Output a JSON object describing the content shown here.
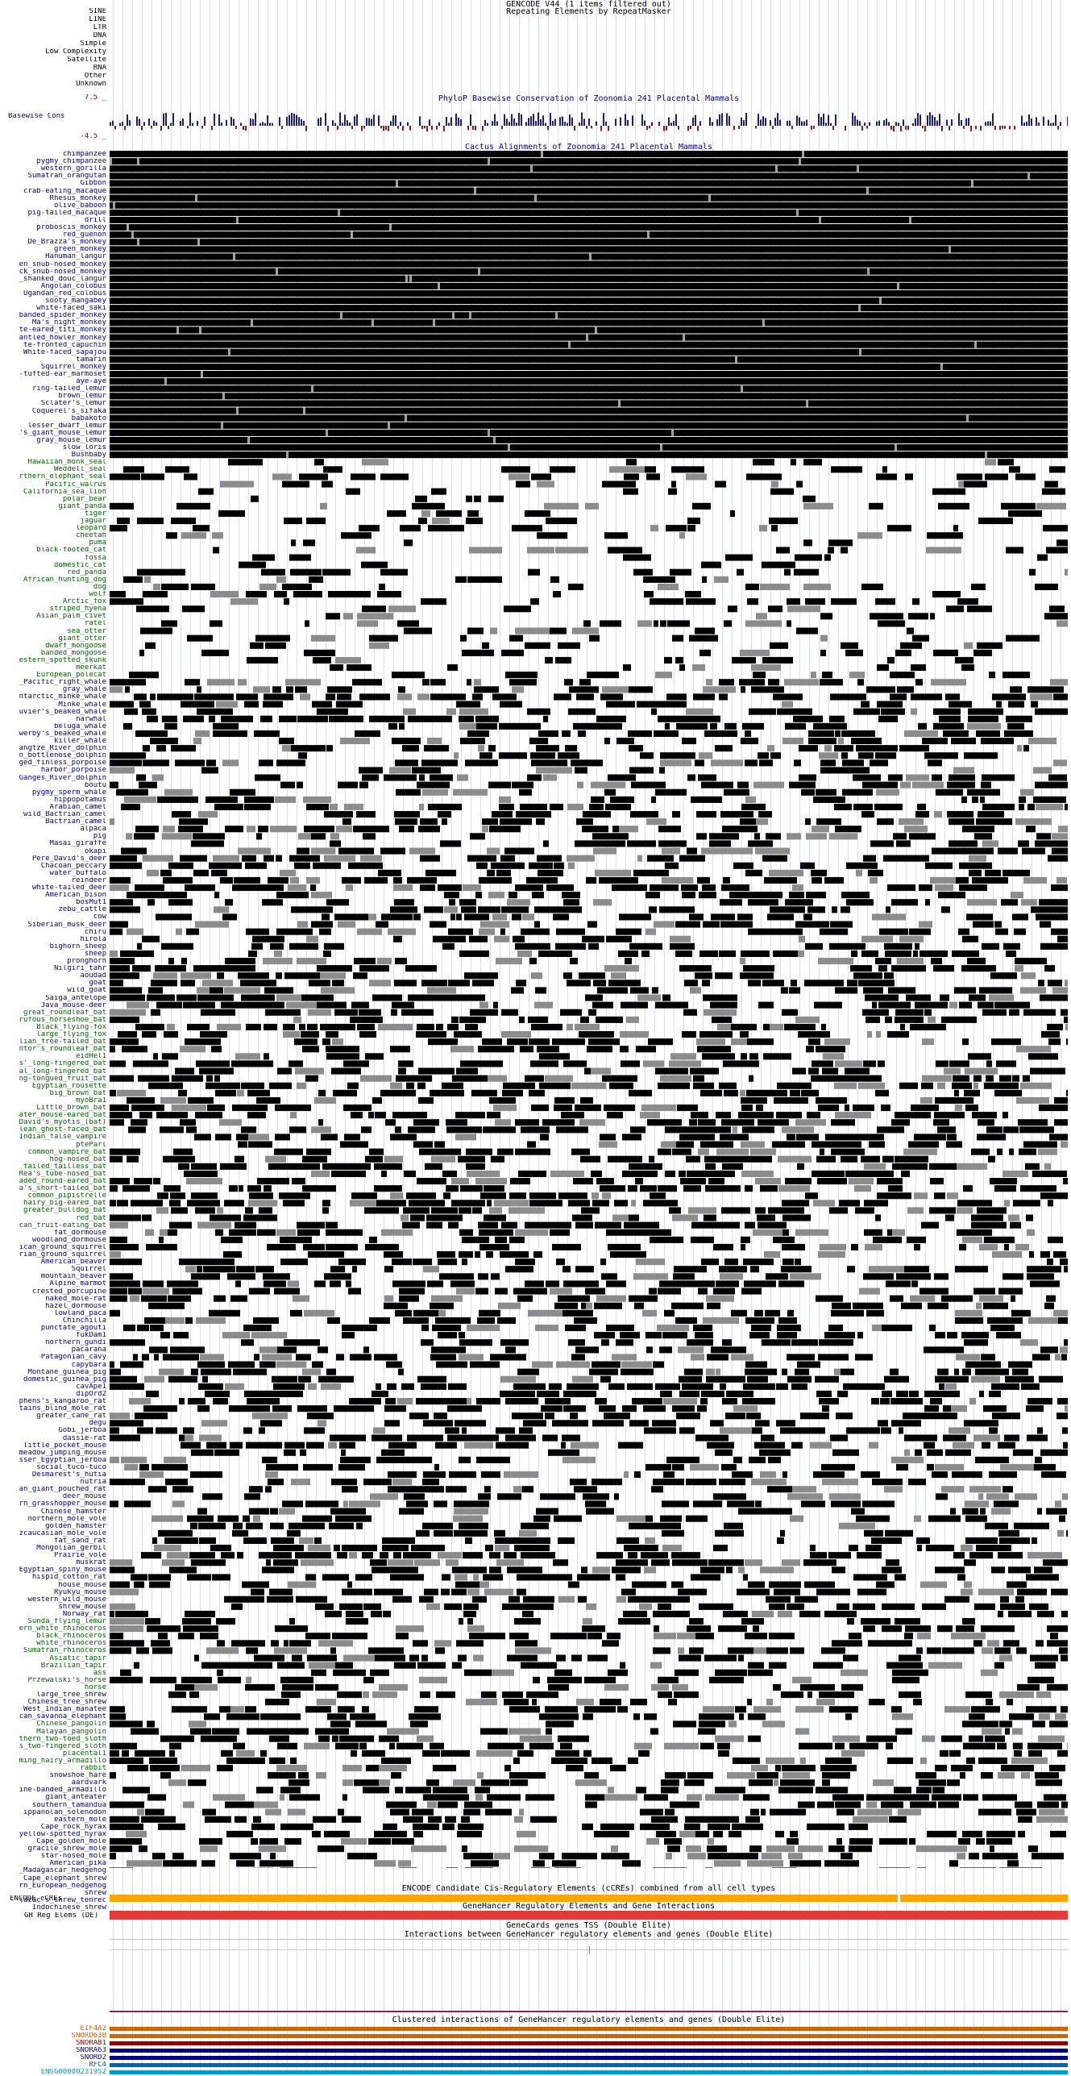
{
  "header": {
    "gencode": "GENCODE V44 (1 items filtered out)",
    "repeatmasker": "Repeating Elements by RepeatMasker"
  },
  "repeat_classes": [
    "SINE",
    "LINE",
    "LTR",
    "DNA",
    "Simple",
    "Low Complexity",
    "Satellite",
    "RNA",
    "Other",
    "Unknown"
  ],
  "conservation": {
    "title": "PhyloP Basewise Conservation of Zoonomia 241 Placental Mammals",
    "label": "Basewise Cons",
    "max_label": "7.5 _",
    "min_label": "-4.5 _",
    "pos_color": "#1a1a80",
    "neg_color": "#8b1a1a"
  },
  "cactus": {
    "title": "Cactus Alignments of Zoonomia 241 Placental Mammals",
    "species": [
      {
        "n": "chimpanzee",
        "c": "#000080"
      },
      {
        "n": "pygmy_chimpanzee",
        "c": "#000080"
      },
      {
        "n": "western_gorilla",
        "c": "#000080"
      },
      {
        "n": "Sumatran_orangutan",
        "c": "#000080"
      },
      {
        "n": "Gibbon",
        "c": "#000080"
      },
      {
        "n": "crab-eating_macaque",
        "c": "#000080"
      },
      {
        "n": "Rhesus_monkey",
        "c": "#000080"
      },
      {
        "n": "olive_baboon",
        "c": "#000080"
      },
      {
        "n": "pig-tailed_macaque",
        "c": "#000080"
      },
      {
        "n": "drill",
        "c": "#000080"
      },
      {
        "n": "proboscis_monkey",
        "c": "#000080"
      },
      {
        "n": "red_guenon",
        "c": "#000080"
      },
      {
        "n": "De_Brazza's_monkey",
        "c": "#000080"
      },
      {
        "n": "green_monkey",
        "c": "#000080"
      },
      {
        "n": "Hanuman_langur",
        "c": "#000080"
      },
      {
        "n": "en_snub-nosed_monkey",
        "c": "#000080"
      },
      {
        "n": "ck_snub-nosed_monkey",
        "c": "#000080"
      },
      {
        "n": "_shanked_douc_langur",
        "c": "#000080"
      },
      {
        "n": "Angolan_colobus",
        "c": "#000080"
      },
      {
        "n": "Ugandan_red_colobus",
        "c": "#000080"
      },
      {
        "n": "sooty_mangabey",
        "c": "#000080"
      },
      {
        "n": "white-faced_saki",
        "c": "#000080"
      },
      {
        "n": "banded_spider_monkey",
        "c": "#000080"
      },
      {
        "n": "Ma's_night_monkey",
        "c": "#000080"
      },
      {
        "n": "te-eared_titi_monkey",
        "c": "#000080"
      },
      {
        "n": "antled_howler_monkey",
        "c": "#000080"
      },
      {
        "n": "te-fronted_capuchin",
        "c": "#000080"
      },
      {
        "n": "White-faced_sapajou",
        "c": "#000080"
      },
      {
        "n": "tamarin",
        "c": "#000080"
      },
      {
        "n": "Squirrel_monkey",
        "c": "#000080"
      },
      {
        "n": "-tufted-ear_marmoset",
        "c": "#000080"
      },
      {
        "n": "aye-aye",
        "c": "#000080"
      },
      {
        "n": "ring-tailed_lemur",
        "c": "#000080"
      },
      {
        "n": "brown_lemur",
        "c": "#000080"
      },
      {
        "n": "Sclater's_lemur",
        "c": "#000080"
      },
      {
        "n": "Coquerel's_sifaka",
        "c": "#000080"
      },
      {
        "n": "babakoto",
        "c": "#000080"
      },
      {
        "n": "lesser_dwarf_lemur",
        "c": "#000080"
      },
      {
        "n": "'s_giant_mouse_lemur",
        "c": "#000080"
      },
      {
        "n": "gray_mouse_lemur",
        "c": "#000080"
      },
      {
        "n": "slow_loris",
        "c": "#000080"
      },
      {
        "n": "Bushbaby",
        "c": "#000080"
      },
      {
        "n": "Hawaiian_monk_seal",
        "c": "#006400"
      },
      {
        "n": "Weddell_seal",
        "c": "#006400"
      },
      {
        "n": "rthern_elephant_seal",
        "c": "#006400"
      },
      {
        "n": "Pacific_walrus",
        "c": "#006400"
      },
      {
        "n": "California_sea_lion",
        "c": "#006400"
      },
      {
        "n": "polar_bear",
        "c": "#006400"
      },
      {
        "n": "giant_panda",
        "c": "#006400"
      },
      {
        "n": "tiger",
        "c": "#006400"
      },
      {
        "n": "jaguar",
        "c": "#006400"
      },
      {
        "n": "leopard",
        "c": "#006400"
      },
      {
        "n": "cheetah",
        "c": "#006400"
      },
      {
        "n": "puma",
        "c": "#006400"
      },
      {
        "n": "black-footed_cat",
        "c": "#006400"
      },
      {
        "n": "fossa",
        "c": "#006400"
      },
      {
        "n": "domestic_cat",
        "c": "#006400"
      },
      {
        "n": "red_panda",
        "c": "#006400"
      },
      {
        "n": "African_hunting_dog",
        "c": "#006400"
      },
      {
        "n": "dog",
        "c": "#006400"
      },
      {
        "n": "wolf",
        "c": "#006400"
      },
      {
        "n": "Arctic_fox",
        "c": "#006400"
      },
      {
        "n": "striped_hyena",
        "c": "#006400"
      },
      {
        "n": "Asian_palm_civet",
        "c": "#006400"
      },
      {
        "n": "ratel",
        "c": "#006400"
      },
      {
        "n": "sea_otter",
        "c": "#006400"
      },
      {
        "n": "giant_otter",
        "c": "#006400"
      },
      {
        "n": "dwarf_mongoose",
        "c": "#006400"
      },
      {
        "n": "banded_mongoose",
        "c": "#006400"
      },
      {
        "n": "estern_spotted_skunk",
        "c": "#006400"
      },
      {
        "n": "meerkat",
        "c": "#006400"
      },
      {
        "n": "European_polecat",
        "c": "#006400"
      },
      {
        "n": "_Pacific_right_whale",
        "c": "#000080"
      },
      {
        "n": "gray_whale",
        "c": "#000080"
      },
      {
        "n": "ntarctic_minke_whale",
        "c": "#000080"
      },
      {
        "n": "Minke_whale",
        "c": "#000080"
      },
      {
        "n": "uvier's_beaked_whale",
        "c": "#000080"
      },
      {
        "n": "narwhal",
        "c": "#000080"
      },
      {
        "n": "beluga_whale",
        "c": "#000080"
      },
      {
        "n": "werby's_beaked_whale",
        "c": "#000080"
      },
      {
        "n": "killer_whale",
        "c": "#000080"
      },
      {
        "n": "angtze_River_dolphin",
        "c": "#000080"
      },
      {
        "n": "n_bottlenose_dolphin",
        "c": "#000080"
      },
      {
        "n": "ged_finless_porpoise",
        "c": "#000080"
      },
      {
        "n": "harbor_porpoise",
        "c": "#000080"
      },
      {
        "n": "Ganges_River_dolphin",
        "c": "#000080"
      },
      {
        "n": "boutu",
        "c": "#000080"
      },
      {
        "n": "pygmy_sperm_whale",
        "c": "#000080"
      },
      {
        "n": "hippopotamus",
        "c": "#000080"
      },
      {
        "n": "Arabian_camel",
        "c": "#000080"
      },
      {
        "n": "wild_Bactrian_camel",
        "c": "#000080"
      },
      {
        "n": "Bactrian_camel",
        "c": "#000080"
      },
      {
        "n": "alpaca",
        "c": "#000080"
      },
      {
        "n": "pig",
        "c": "#000080"
      },
      {
        "n": "Masai_giraffe",
        "c": "#000080"
      },
      {
        "n": "okapi",
        "c": "#000080"
      },
      {
        "n": "Pere_David's_deer",
        "c": "#000080"
      },
      {
        "n": "Chacoan_peccary",
        "c": "#000080"
      },
      {
        "n": "water_buffalo",
        "c": "#000080"
      },
      {
        "n": "reindeer",
        "c": "#000080"
      },
      {
        "n": "white-tailed_deer",
        "c": "#000080"
      },
      {
        "n": "American_bison",
        "c": "#000080"
      },
      {
        "n": "bosMut1",
        "c": "#000080"
      },
      {
        "n": "zebu_cattle",
        "c": "#000080"
      },
      {
        "n": "cow",
        "c": "#000080"
      },
      {
        "n": "Siberian_musk_deer",
        "c": "#000080"
      },
      {
        "n": "chiru",
        "c": "#000080"
      },
      {
        "n": "hirola",
        "c": "#000080"
      },
      {
        "n": "bighorn_sheep",
        "c": "#000080"
      },
      {
        "n": "sheep",
        "c": "#000080"
      },
      {
        "n": "pronghorn",
        "c": "#000080"
      },
      {
        "n": "Nilgiri_tahr",
        "c": "#000080"
      },
      {
        "n": "aoudad",
        "c": "#000080"
      },
      {
        "n": "goat",
        "c": "#000080"
      },
      {
        "n": "wild_goat",
        "c": "#000080"
      },
      {
        "n": "Saiga_antelope",
        "c": "#000080"
      },
      {
        "n": "Java_mouse-deer",
        "c": "#000080"
      },
      {
        "n": "great_roundleaf_bat",
        "c": "#006400"
      },
      {
        "n": "rufous_horseshoe_bat",
        "c": "#006400"
      },
      {
        "n": "Black_flying-fox",
        "c": "#006400"
      },
      {
        "n": "large_flying_fox",
        "c": "#006400"
      },
      {
        "n": "lian_free-tailed_bat",
        "c": "#006400"
      },
      {
        "n": "ntor's_roundleaf_bat",
        "c": "#006400"
      },
      {
        "n": "eidHel1",
        "c": "#006400"
      },
      {
        "n": "s'_long-fingered_bat",
        "c": "#006400"
      },
      {
        "n": "al_long-fingered_bat",
        "c": "#006400"
      },
      {
        "n": "ng-tongued_fruit_bat",
        "c": "#006400"
      },
      {
        "n": "Egyptian_rousette",
        "c": "#006400"
      },
      {
        "n": "big_brown_bat",
        "c": "#006400"
      },
      {
        "n": "myoBra1",
        "c": "#006400"
      },
      {
        "n": "Little_brown_bat",
        "c": "#006400"
      },
      {
        "n": "ater_mouse-eared_bat",
        "c": "#006400"
      },
      {
        "n": "David's_myotis_(bat)",
        "c": "#006400"
      },
      {
        "n": "lean_ghost-faced_bat",
        "c": "#006400"
      },
      {
        "n": "Indian_false_vampire",
        "c": "#006400"
      },
      {
        "n": "pteParl",
        "c": "#006400"
      },
      {
        "n": "common_vampire_bat",
        "c": "#006400"
      },
      {
        "n": "hog-nosed_bat",
        "c": "#006400"
      },
      {
        "n": "tailed_tailless_bat",
        "c": "#006400"
      },
      {
        "n": "Rea's_tube-nosed_bat",
        "c": "#006400"
      },
      {
        "n": "aded_round-eared_bat",
        "c": "#006400"
      },
      {
        "n": "a's_short-tailed_bat",
        "c": "#006400"
      },
      {
        "n": "common_pipistrelle",
        "c": "#006400"
      },
      {
        "n": "hairy_big-eared_bat",
        "c": "#006400"
      },
      {
        "n": "greater_bulldog_bat",
        "c": "#006400"
      },
      {
        "n": "red_bat",
        "c": "#006400"
      },
      {
        "n": "can_fruit-eating_bat",
        "c": "#006400"
      },
      {
        "n": "fat_dormouse",
        "c": "#000080"
      },
      {
        "n": "woodland_dormouse",
        "c": "#000080"
      },
      {
        "n": "ican_ground_squirrel",
        "c": "#000080"
      },
      {
        "n": "rian_ground_squirrel",
        "c": "#000080"
      },
      {
        "n": "American_beaver",
        "c": "#000080"
      },
      {
        "n": "Squirrel",
        "c": "#000080"
      },
      {
        "n": "mountain_beaver",
        "c": "#000080"
      },
      {
        "n": "Alpine_marmot",
        "c": "#000080"
      },
      {
        "n": "crested_porcupine",
        "c": "#000080"
      },
      {
        "n": "naked_mole-rat",
        "c": "#000080"
      },
      {
        "n": "hazel_dormouse",
        "c": "#000080"
      },
      {
        "n": "lowland_paca",
        "c": "#000080"
      },
      {
        "n": "Chinchilla",
        "c": "#000080"
      },
      {
        "n": "punctate_agouti",
        "c": "#000080"
      },
      {
        "n": "fukDam1",
        "c": "#000080"
      },
      {
        "n": "northern_gundi",
        "c": "#000080"
      },
      {
        "n": "pacarana",
        "c": "#000080"
      },
      {
        "n": "Patagonian_cavy",
        "c": "#000080"
      },
      {
        "n": "capybara",
        "c": "#000080"
      },
      {
        "n": "Montane_guinea_pig",
        "c": "#000080"
      },
      {
        "n": "domestic_guinea_pig",
        "c": "#000080"
      },
      {
        "n": "cavApe1",
        "c": "#000080"
      },
      {
        "n": "dipOrd2",
        "c": "#000080"
      },
      {
        "n": "phens's_kangaroo_rat",
        "c": "#000080"
      },
      {
        "n": "tains_blind_mole_rat",
        "c": "#000080"
      },
      {
        "n": "greater_cane_rat",
        "c": "#000080"
      },
      {
        "n": "degu",
        "c": "#000080"
      },
      {
        "n": "Gobi_jerboa",
        "c": "#000080"
      },
      {
        "n": "dassie-rat",
        "c": "#000080"
      },
      {
        "n": "little_pocket_mouse",
        "c": "#000080"
      },
      {
        "n": "meadow_jumping_mouse",
        "c": "#000080"
      },
      {
        "n": "sser_Egyptian_jerboa",
        "c": "#000080"
      },
      {
        "n": "social_tuco-tuco",
        "c": "#000080"
      },
      {
        "n": "Desmarest's_hutia",
        "c": "#000080"
      },
      {
        "n": "nutria",
        "c": "#000080"
      },
      {
        "n": "an_giant_pouched_rat",
        "c": "#000080"
      },
      {
        "n": "deer_mouse",
        "c": "#000080"
      },
      {
        "n": "rn_grasshopper_mouse",
        "c": "#000080"
      },
      {
        "n": "Chinese_hamster",
        "c": "#000080"
      },
      {
        "n": "northern_mole_vole",
        "c": "#000080"
      },
      {
        "n": "golden_hamster",
        "c": "#000080"
      },
      {
        "n": "zcaucasian_mole_vole",
        "c": "#000080"
      },
      {
        "n": "fat_sand_rat",
        "c": "#000080"
      },
      {
        "n": "Mongolian_gerbil",
        "c": "#000080"
      },
      {
        "n": "Prairie_vole",
        "c": "#000080"
      },
      {
        "n": "muskrat",
        "c": "#000080"
      },
      {
        "n": "Egyptian_spiny_mouse",
        "c": "#000080"
      },
      {
        "n": "hispid_cotton_rat",
        "c": "#000080"
      },
      {
        "n": "house_mouse",
        "c": "#000080"
      },
      {
        "n": "Ryukyu_mouse",
        "c": "#000080"
      },
      {
        "n": "western_wild_mouse",
        "c": "#000080"
      },
      {
        "n": "shrew_mouse",
        "c": "#000080"
      },
      {
        "n": "Norway_rat",
        "c": "#000080"
      },
      {
        "n": "Sunda_flying_lemur",
        "c": "#006400"
      },
      {
        "n": "ern_white_rhinoceros",
        "c": "#006400"
      },
      {
        "n": "black_rhinoceros",
        "c": "#006400"
      },
      {
        "n": "white_rhinoceros",
        "c": "#006400"
      },
      {
        "n": "Sumatran_rhinoceros",
        "c": "#006400"
      },
      {
        "n": "Asiatic_tapir",
        "c": "#006400"
      },
      {
        "n": "Brazilian_tapir",
        "c": "#006400"
      },
      {
        "n": "ass",
        "c": "#006400"
      },
      {
        "n": "Przewalski's_horse",
        "c": "#006400"
      },
      {
        "n": "horse",
        "c": "#006400"
      },
      {
        "n": "large_tree_shrew",
        "c": "#000080"
      },
      {
        "n": "Chinese_tree_shrew",
        "c": "#000080"
      },
      {
        "n": "West_Indian_manatee",
        "c": "#000080"
      },
      {
        "n": "can_savanna_elephant",
        "c": "#000080"
      },
      {
        "n": "Chinese_pangolin",
        "c": "#006400"
      },
      {
        "n": "Malayan_pangolin",
        "c": "#006400"
      },
      {
        "n": "thern_two-toed_sloth",
        "c": "#006400"
      },
      {
        "n": "s_two-fingered_sloth",
        "c": "#006400"
      },
      {
        "n": "placental1",
        "c": "#006400"
      },
      {
        "n": "ming_hairy_armadillo",
        "c": "#006400"
      },
      {
        "n": "rabbit",
        "c": "#006400"
      },
      {
        "n": "snowshoe_hare",
        "c": "#000080"
      },
      {
        "n": "aardvark",
        "c": "#000080"
      },
      {
        "n": "ine-banded_armadillo",
        "c": "#000080"
      },
      {
        "n": "giant_anteater",
        "c": "#000080"
      },
      {
        "n": "southern_tamandua",
        "c": "#000080"
      },
      {
        "n": "ippanolan_solenodon",
        "c": "#000080"
      },
      {
        "n": "eastern_mole",
        "c": "#000080"
      },
      {
        "n": "Cape_rock_hyrax",
        "c": "#000080"
      },
      {
        "n": "yellow-spotted_hyrax",
        "c": "#000080"
      },
      {
        "n": "Cape_golden_mole",
        "c": "#000080"
      },
      {
        "n": "gracile_shrew_mole",
        "c": "#000080"
      },
      {
        "n": "star-nosed_mole",
        "c": "#000080"
      },
      {
        "n": "American_pika",
        "c": "#000080"
      },
      {
        "n": "_Madagascar_hedgehog",
        "c": "#000080"
      },
      {
        "n": "Cape_elephant_shrew",
        "c": "#000080"
      },
      {
        "n": "rn_European_hedgehog",
        "c": "#000080"
      },
      {
        "n": "shrew",
        "c": "#000080"
      },
      {
        "n": "lazac's_shrew_tenrec",
        "c": "#000080"
      },
      {
        "n": "Indochinese_shrew",
        "c": "#000080"
      }
    ]
  },
  "encode": {
    "title": "ENCODE Candidate Cis-Regulatory Elements (cCREs) combined from all cell types",
    "label": "ENCODE cCREs",
    "color": "#ffa500"
  },
  "genehancer": {
    "title": "GeneHancer Regulatory Elements and Gene Interactions",
    "label": "GH Reg Elems (DE)",
    "color": "#e33a3a",
    "tss_title": "GeneCards genes TSS (Double Elite)",
    "interactions_title": "Interactions between GeneHancer regulatory elements and genes (Double Elite)",
    "clustered_title": "Clustered interactions of GeneHancer regulatory elements and genes (Double Elite)"
  },
  "genes": [
    {
      "label": "EIF4A2",
      "color": "#cc6600"
    },
    {
      "label": "SNORD63B",
      "color": "#cc6600"
    },
    {
      "label": "SNORA81",
      "color": "#8b0000"
    },
    {
      "label": "SNORA63",
      "color": "#000080"
    },
    {
      "label": "SNORD2",
      "color": "#000080"
    },
    {
      "label": "RFC4",
      "color": "#0066aa"
    },
    {
      "label": "ENSG00000231952",
      "color": "#0099cc"
    }
  ]
}
